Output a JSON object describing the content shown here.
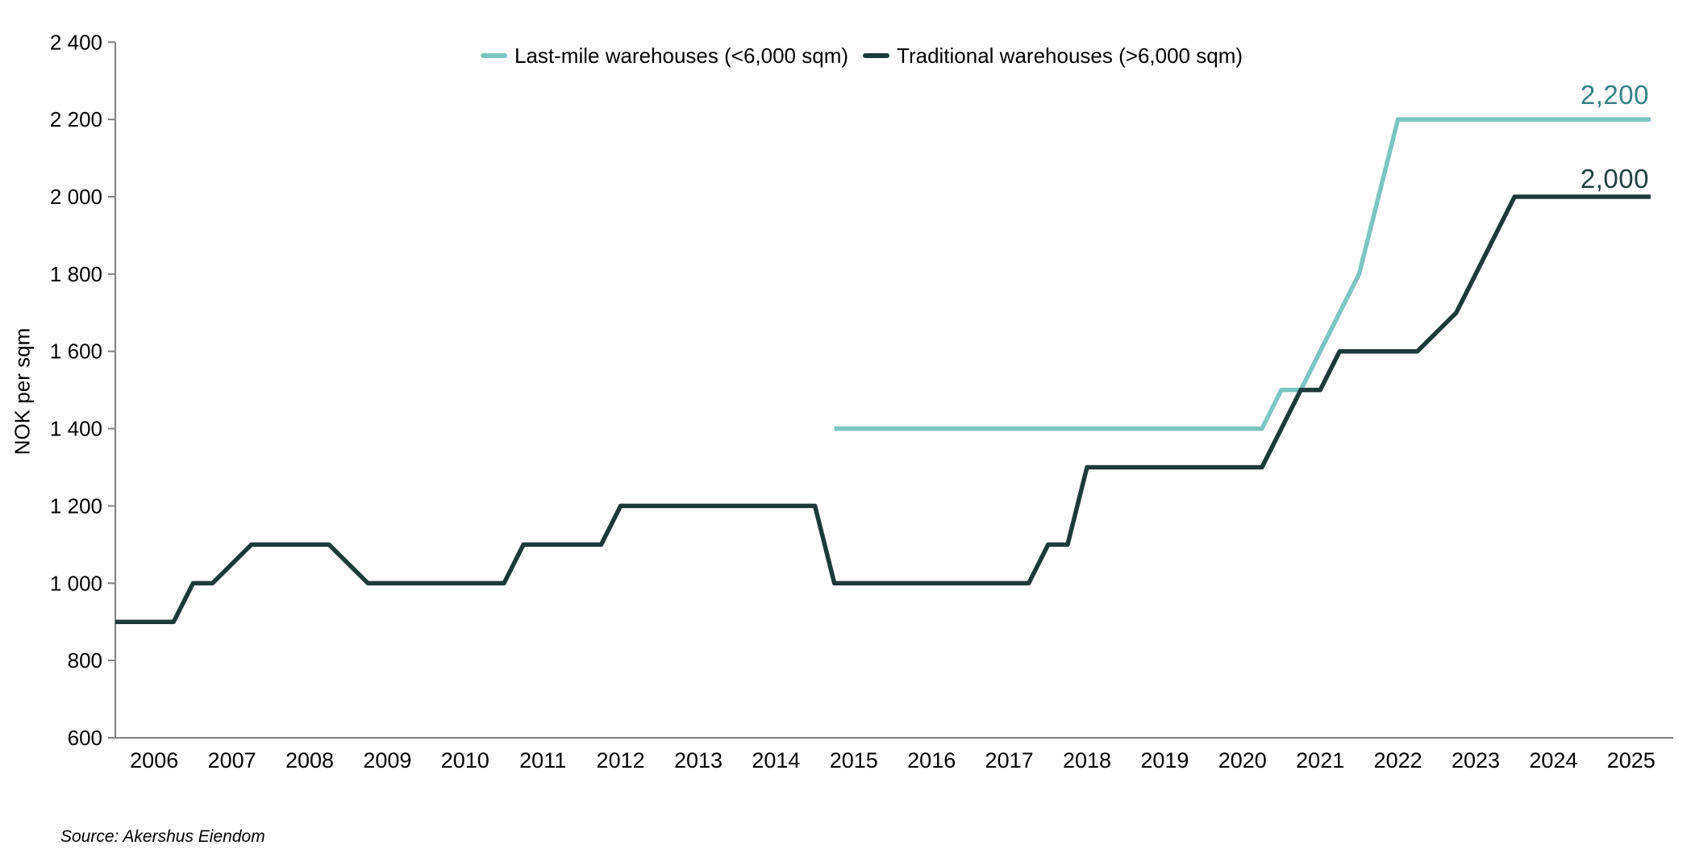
{
  "source_note": "Source: Akershus Eiendom",
  "chart_data": {
    "type": "line",
    "title": "",
    "xlabel": "",
    "ylabel": "NOK per sqm",
    "ylim": [
      600,
      2400
    ],
    "ytick_step": 200,
    "ytick_values": [
      600,
      800,
      1000,
      1200,
      1400,
      1600,
      1800,
      2000,
      2200,
      2400
    ],
    "ytick_labels": [
      "600",
      "800",
      "1 000",
      "1 200",
      "1 400",
      "1 600",
      "1 800",
      "2 000",
      "2 200",
      "2 400"
    ],
    "xlim": [
      2005.5,
      2025.75
    ],
    "xtick_labels": [
      "2006",
      "2007",
      "2008",
      "2009",
      "2010",
      "2011",
      "2012",
      "2013",
      "2014",
      "2015",
      "2016",
      "2017",
      "2018",
      "2019",
      "2020",
      "2021",
      "2022",
      "2023",
      "2024",
      "2025"
    ],
    "grid": false,
    "legend_position": "top-center",
    "axis_color": "#808080",
    "series": [
      {
        "name": "Last-mile warehouses (<6,000 sqm)",
        "color": "#7cc5c0",
        "label_color": "#378084",
        "end_label": "2,200",
        "final_value": 2200,
        "points": [
          [
            2014.75,
            1400
          ],
          [
            2020.25,
            1400
          ],
          [
            2020.5,
            1500
          ],
          [
            2020.75,
            1500
          ],
          [
            2021.5,
            1800
          ],
          [
            2022.0,
            2200
          ],
          [
            2025.25,
            2200
          ]
        ]
      },
      {
        "name": "Traditional warehouses (>6,000 sqm)",
        "color": "#1e3a38",
        "label_color": "#21403e",
        "end_label": "2,000",
        "final_value": 2000,
        "points": [
          [
            2005.5,
            900
          ],
          [
            2006.25,
            900
          ],
          [
            2006.5,
            1000
          ],
          [
            2006.75,
            1000
          ],
          [
            2007.25,
            1100
          ],
          [
            2008.25,
            1100
          ],
          [
            2008.75,
            1000
          ],
          [
            2010.5,
            1000
          ],
          [
            2010.75,
            1100
          ],
          [
            2011.75,
            1100
          ],
          [
            2012.0,
            1200
          ],
          [
            2014.5,
            1200
          ],
          [
            2014.75,
            1000
          ],
          [
            2017.25,
            1000
          ],
          [
            2017.5,
            1100
          ],
          [
            2017.75,
            1100
          ],
          [
            2018.0,
            1300
          ],
          [
            2020.25,
            1300
          ],
          [
            2020.75,
            1500
          ],
          [
            2021.0,
            1500
          ],
          [
            2021.25,
            1600
          ],
          [
            2022.25,
            1600
          ],
          [
            2022.75,
            1700
          ],
          [
            2023.5,
            2000
          ],
          [
            2025.25,
            2000
          ]
        ]
      }
    ]
  }
}
